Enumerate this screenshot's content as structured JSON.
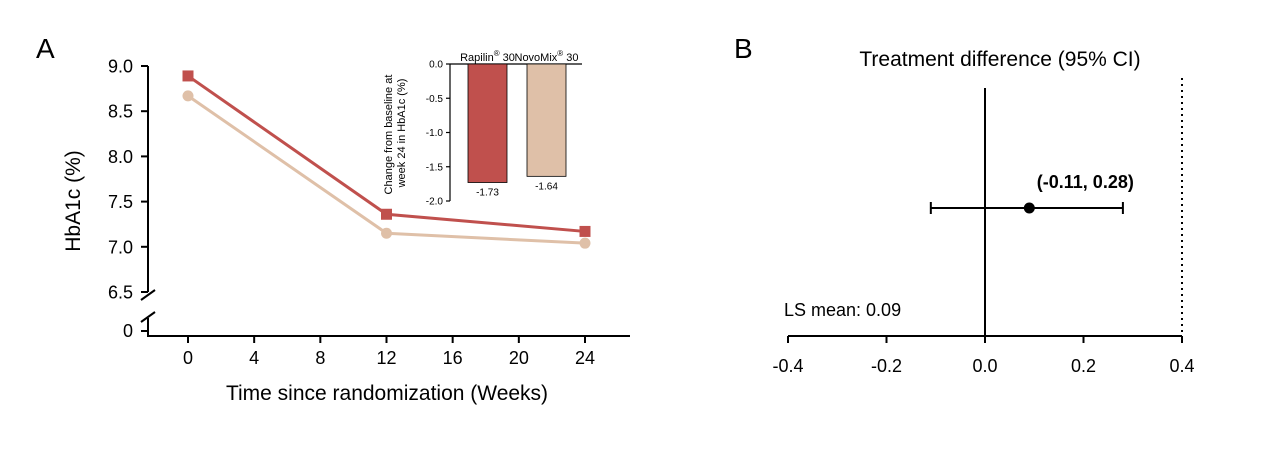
{
  "panels": {
    "a": {
      "label": "A",
      "chart_data": {
        "type": "line",
        "xlabel": "Time since randomization (Weeks)",
        "ylabel": "HbA1c (%)",
        "x_ticks": [
          "0",
          "4",
          "8",
          "12",
          "16",
          "20",
          "24"
        ],
        "y_ticks": [
          "6.5",
          "7.0",
          "7.5",
          "8.0",
          "8.5",
          "9.0"
        ],
        "y_zero_tick": "0",
        "xlim": [
          -3,
          27
        ],
        "ylim": [
          6.5,
          9.0
        ],
        "axis_break": true,
        "series": [
          {
            "color": "#c0504d",
            "marker": "square",
            "x": [
              0,
              12,
              24
            ],
            "y": [
              8.89,
              7.36,
              7.17
            ]
          },
          {
            "color": "#dfc0a8",
            "marker": "circle",
            "x": [
              0,
              12,
              24
            ],
            "y": [
              8.67,
              7.15,
              7.04
            ]
          }
        ]
      },
      "inset": {
        "chart_data": {
          "type": "bar",
          "ylabel_line1": "Change from baseline at",
          "ylabel_line2": "week 24 in HbA1c (%)",
          "y_ticks": [
            "0.0",
            "-0.5",
            "-1.0",
            "-1.5",
            "-2.0"
          ],
          "ylim": [
            -2.0,
            0.0
          ],
          "categories": [
            {
              "name": "Rapilin",
              "sup": "®",
              "suffix": " 30"
            },
            {
              "name": "NovoMix",
              "sup": "®",
              "suffix": " 30"
            }
          ],
          "values": [
            -1.73,
            -1.64
          ],
          "value_labels": [
            "-1.73",
            "-1.64"
          ],
          "colors": [
            "#c0504d",
            "#dfc0a8"
          ]
        }
      }
    },
    "b": {
      "label": "B",
      "chart_data": {
        "type": "scatter",
        "title": "Treatment difference (95% CI)",
        "x_ticks": [
          "-0.4",
          "-0.2",
          "0.0",
          "0.2",
          "0.4"
        ],
        "xlim": [
          -0.4,
          0.4
        ],
        "point": 0.09,
        "ci": [
          -0.11,
          0.28
        ],
        "ci_label": "(-0.11, 0.28)",
        "mean_label": "LS mean: 0.09",
        "reference_line": 0.0,
        "margin_line": 0.4
      }
    }
  }
}
